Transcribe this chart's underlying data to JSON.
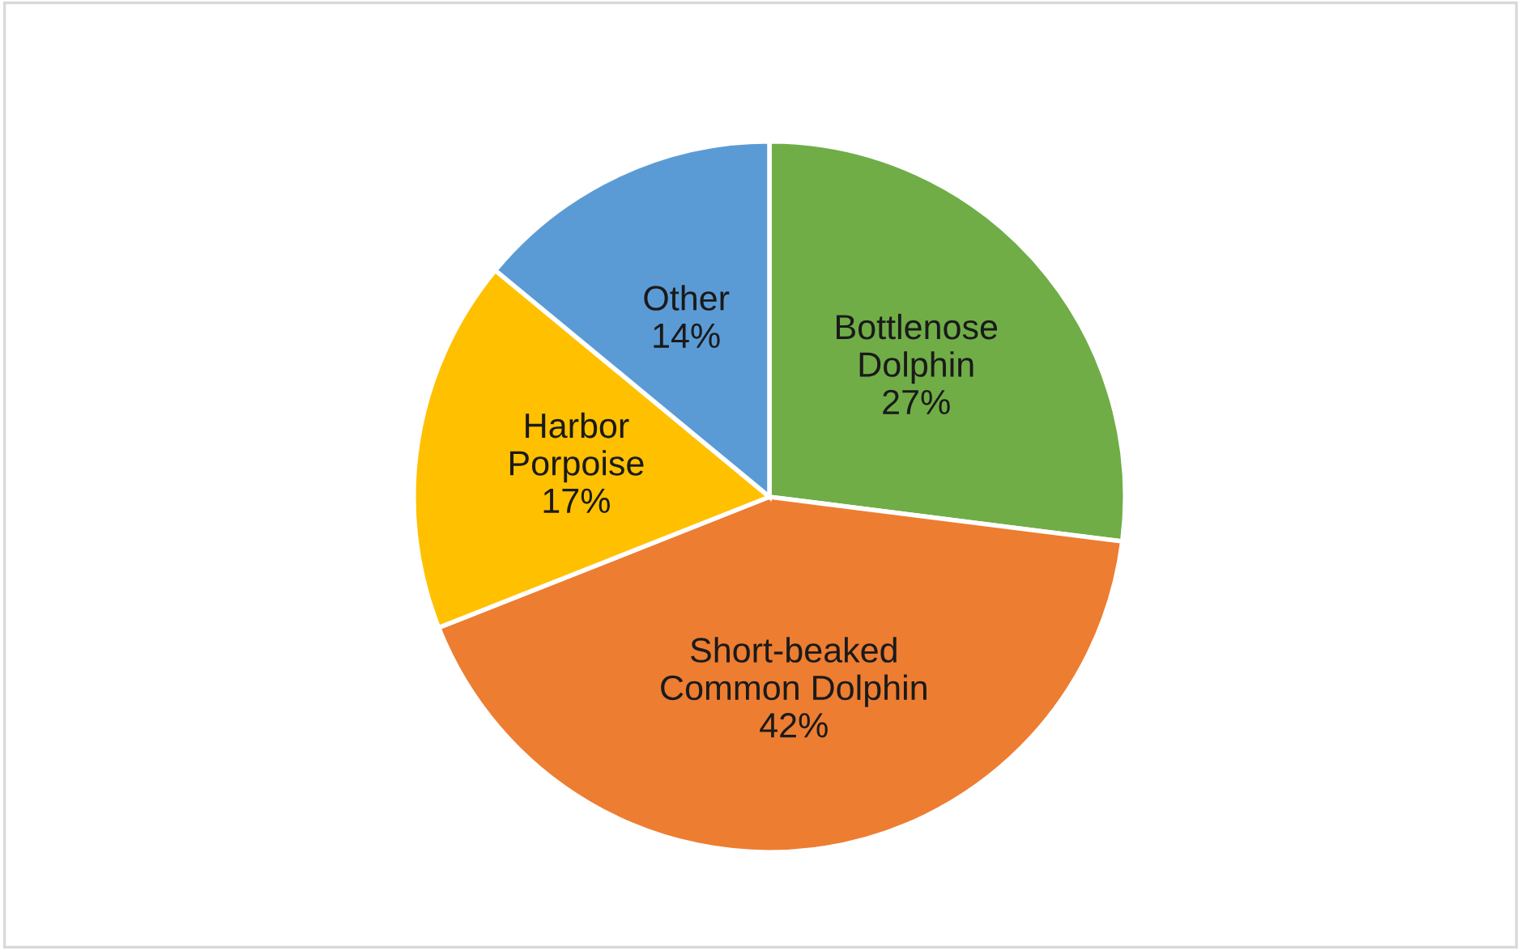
{
  "chart_data": {
    "type": "pie",
    "categories": [
      "Bottlenose\nDolphin",
      "Short-beaked\nCommon Dolphin",
      "Harbor\nPorpoise",
      "Other"
    ],
    "values": [
      27,
      42,
      17,
      14
    ],
    "value_labels": [
      "27%",
      "42%",
      "17%",
      "14%"
    ],
    "colors": [
      "#70ad47",
      "#ed7d31",
      "#ffc000",
      "#5b9bd5"
    ],
    "legend": false
  }
}
